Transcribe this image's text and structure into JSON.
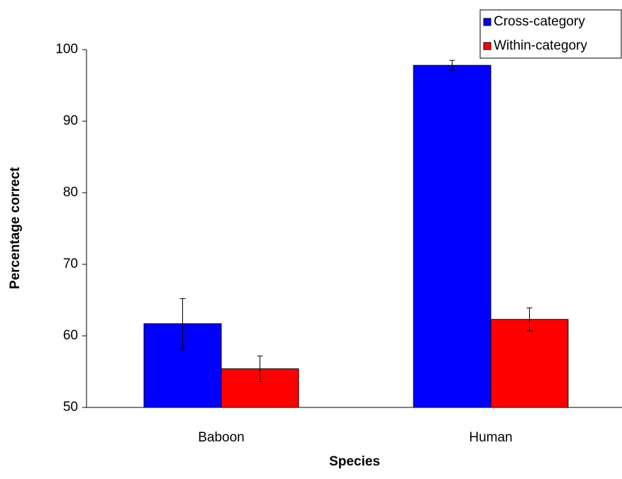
{
  "chart_data": {
    "type": "bar",
    "x_label": "Species",
    "y_label": "Percentage correct",
    "categories": [
      "Baboon",
      "Human"
    ],
    "series": [
      {
        "name": "Cross-category",
        "color": "#0000ff",
        "values": [
          61.7,
          97.8
        ],
        "errors": [
          3.5,
          0.7
        ]
      },
      {
        "name": "Within-category",
        "color": "#ff0000",
        "values": [
          55.4,
          62.3
        ],
        "errors": [
          1.8,
          1.6
        ]
      }
    ],
    "ylim": [
      50,
      100
    ],
    "yticks": [
      50,
      60,
      70,
      80,
      90,
      100
    ],
    "legend": "upper right"
  }
}
